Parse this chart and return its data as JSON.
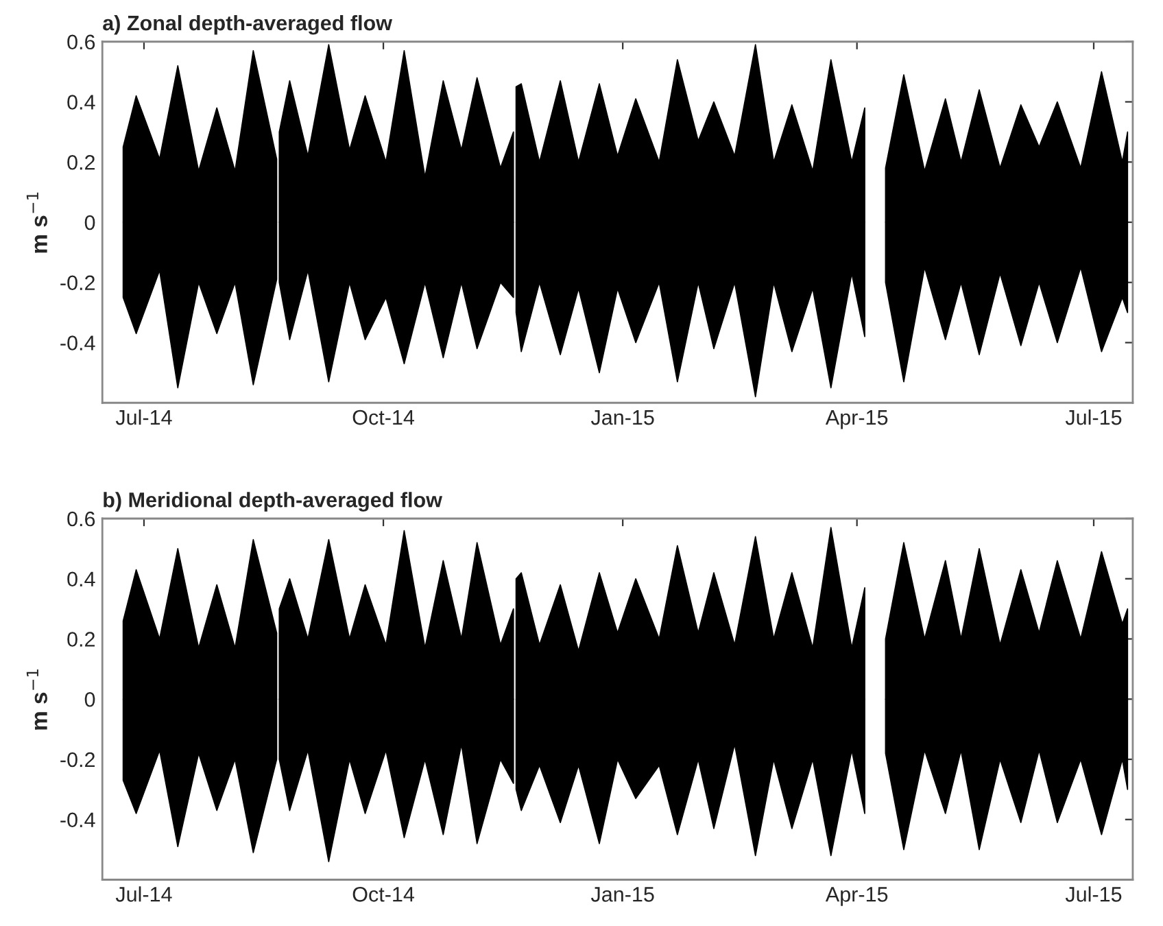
{
  "chart_data": [
    {
      "type": "area",
      "title": "a) Zonal depth-averaged flow",
      "ylabel": "m s$^{−1}$",
      "x": [
        "2014-06-23",
        "2014-06-28",
        "2014-07-07",
        "2014-07-14",
        "2014-07-22",
        "2014-07-29",
        "2014-08-05",
        "2014-08-12",
        "2014-08-21",
        "2014-08-21T12:00",
        "2014-08-22",
        "2014-08-26",
        "2014-09-02",
        "2014-09-10",
        "2014-09-18",
        "2014-09-24",
        "2014-10-02",
        "2014-10-09",
        "2014-10-17",
        "2014-10-24",
        "2014-10-31",
        "2014-11-06",
        "2014-11-15",
        "2014-11-20",
        "2014-11-20T12:00",
        "2014-11-21",
        "2014-11-23",
        "2014-11-30",
        "2014-12-08",
        "2014-12-15",
        "2014-12-23",
        "2014-12-30",
        "2015-01-06",
        "2015-01-15",
        "2015-01-22",
        "2015-01-30",
        "2015-02-05",
        "2015-02-13",
        "2015-02-21",
        "2015-02-28",
        "2015-03-07",
        "2015-03-15",
        "2015-03-22",
        "2015-03-30",
        "2015-04-04",
        "2015-04-08",
        "2015-04-12",
        "2015-04-19",
        "2015-04-27",
        "2015-05-05",
        "2015-05-11",
        "2015-05-18",
        "2015-05-26",
        "2015-06-03",
        "2015-06-10",
        "2015-06-17",
        "2015-06-26",
        "2015-07-04",
        "2015-07-12",
        "2015-07-14"
      ],
      "series": [
        {
          "color": "#000000",
          "values": [
            0.25,
            0.42,
            0.21,
            0.52,
            0.17,
            0.38,
            0.17,
            0.57,
            0.21,
            null,
            0.3,
            0.47,
            0.22,
            0.59,
            0.24,
            0.42,
            0.2,
            0.57,
            0.15,
            0.47,
            0.24,
            0.48,
            0.18,
            0.3,
            null,
            0.45,
            0.46,
            0.2,
            0.47,
            0.2,
            0.46,
            0.22,
            0.41,
            0.2,
            0.54,
            0.27,
            0.4,
            0.22,
            0.59,
            0.2,
            0.39,
            0.17,
            0.54,
            0.2,
            0.38,
            null,
            0.18,
            0.49,
            0.17,
            0.41,
            0.2,
            0.44,
            0.18,
            0.39,
            0.25,
            0.4,
            0.18,
            0.5,
            0.2,
            0.3
          ]
        },
        {
          "color": "#000000",
          "values": [
            -0.25,
            -0.37,
            -0.16,
            -0.55,
            -0.2,
            -0.37,
            -0.2,
            -0.54,
            -0.19,
            null,
            -0.2,
            -0.39,
            -0.16,
            -0.53,
            -0.2,
            -0.39,
            -0.25,
            -0.47,
            -0.2,
            -0.45,
            -0.2,
            -0.42,
            -0.2,
            -0.25,
            null,
            -0.3,
            -0.43,
            -0.2,
            -0.44,
            -0.22,
            -0.5,
            -0.22,
            -0.4,
            -0.2,
            -0.53,
            -0.2,
            -0.42,
            -0.2,
            -0.58,
            -0.2,
            -0.43,
            -0.22,
            -0.55,
            -0.17,
            -0.38,
            null,
            -0.2,
            -0.53,
            -0.15,
            -0.39,
            -0.2,
            -0.44,
            -0.17,
            -0.41,
            -0.2,
            -0.4,
            -0.15,
            -0.43,
            -0.25,
            -0.3
          ]
        }
      ],
      "xlim": [
        "2014-06-15",
        "2015-07-16"
      ],
      "xticks": [
        {
          "value": "2014-07-01",
          "label": "Jul-14"
        },
        {
          "value": "2014-10-01",
          "label": "Oct-14"
        },
        {
          "value": "2015-01-01",
          "label": "Jan-15"
        },
        {
          "value": "2015-04-01",
          "label": "Apr-15"
        },
        {
          "value": "2015-07-01",
          "label": "Jul-15"
        }
      ],
      "ylim": [
        -0.6,
        0.6
      ],
      "yticks": [
        -0.4,
        -0.2,
        0,
        0.2,
        0.4,
        0.6
      ],
      "grid": false,
      "legend": false
    },
    {
      "type": "area",
      "title": "b) Meridional depth-averaged flow",
      "ylabel": "m s$^{−1}$",
      "x": [
        "2014-06-23",
        "2014-06-28",
        "2014-07-07",
        "2014-07-14",
        "2014-07-22",
        "2014-07-29",
        "2014-08-05",
        "2014-08-12",
        "2014-08-21",
        "2014-08-21T12:00",
        "2014-08-22",
        "2014-08-26",
        "2014-09-02",
        "2014-09-10",
        "2014-09-18",
        "2014-09-24",
        "2014-10-02",
        "2014-10-09",
        "2014-10-17",
        "2014-10-24",
        "2014-10-31",
        "2014-11-06",
        "2014-11-15",
        "2014-11-20",
        "2014-11-20T12:00",
        "2014-11-21",
        "2014-11-23",
        "2014-11-30",
        "2014-12-08",
        "2014-12-15",
        "2014-12-23",
        "2014-12-30",
        "2015-01-06",
        "2015-01-15",
        "2015-01-22",
        "2015-01-30",
        "2015-02-05",
        "2015-02-13",
        "2015-02-21",
        "2015-02-28",
        "2015-03-07",
        "2015-03-15",
        "2015-03-22",
        "2015-03-30",
        "2015-04-04",
        "2015-04-08",
        "2015-04-12",
        "2015-04-19",
        "2015-04-27",
        "2015-05-05",
        "2015-05-11",
        "2015-05-18",
        "2015-05-26",
        "2015-06-03",
        "2015-06-10",
        "2015-06-17",
        "2015-06-26",
        "2015-07-04",
        "2015-07-12",
        "2015-07-14"
      ],
      "series": [
        {
          "color": "#000000",
          "values": [
            0.26,
            0.43,
            0.2,
            0.5,
            0.17,
            0.38,
            0.17,
            0.53,
            0.22,
            null,
            0.3,
            0.4,
            0.2,
            0.53,
            0.2,
            0.38,
            0.18,
            0.56,
            0.17,
            0.46,
            0.2,
            0.52,
            0.18,
            0.3,
            null,
            0.4,
            0.42,
            0.18,
            0.38,
            0.16,
            0.42,
            0.22,
            0.4,
            0.2,
            0.51,
            0.22,
            0.42,
            0.18,
            0.54,
            0.2,
            0.42,
            0.17,
            0.57,
            0.17,
            0.37,
            null,
            0.2,
            0.52,
            0.2,
            0.46,
            0.2,
            0.5,
            0.18,
            0.43,
            0.22,
            0.46,
            0.2,
            0.49,
            0.25,
            0.3
          ]
        },
        {
          "color": "#000000",
          "values": [
            -0.27,
            -0.38,
            -0.17,
            -0.49,
            -0.18,
            -0.37,
            -0.2,
            -0.51,
            -0.2,
            null,
            -0.2,
            -0.37,
            -0.17,
            -0.54,
            -0.2,
            -0.38,
            -0.17,
            -0.46,
            -0.2,
            -0.45,
            -0.15,
            -0.48,
            -0.2,
            -0.28,
            null,
            -0.3,
            -0.37,
            -0.22,
            -0.41,
            -0.22,
            -0.48,
            -0.2,
            -0.33,
            -0.22,
            -0.45,
            -0.2,
            -0.43,
            -0.15,
            -0.52,
            -0.2,
            -0.43,
            -0.2,
            -0.52,
            -0.17,
            -0.38,
            null,
            -0.18,
            -0.5,
            -0.17,
            -0.38,
            -0.17,
            -0.5,
            -0.2,
            -0.41,
            -0.17,
            -0.41,
            -0.2,
            -0.45,
            -0.2,
            -0.3
          ]
        }
      ],
      "xlim": [
        "2014-06-15",
        "2015-07-16"
      ],
      "xticks": [
        {
          "value": "2014-07-01",
          "label": "Jul-14"
        },
        {
          "value": "2014-10-01",
          "label": "Oct-14"
        },
        {
          "value": "2015-01-01",
          "label": "Jan-15"
        },
        {
          "value": "2015-04-01",
          "label": "Apr-15"
        },
        {
          "value": "2015-07-01",
          "label": "Jul-15"
        }
      ],
      "ylim": [
        -0.6,
        0.6
      ],
      "yticks": [
        -0.4,
        -0.2,
        0,
        0.2,
        0.4,
        0.6
      ],
      "grid": false,
      "legend": false
    }
  ]
}
